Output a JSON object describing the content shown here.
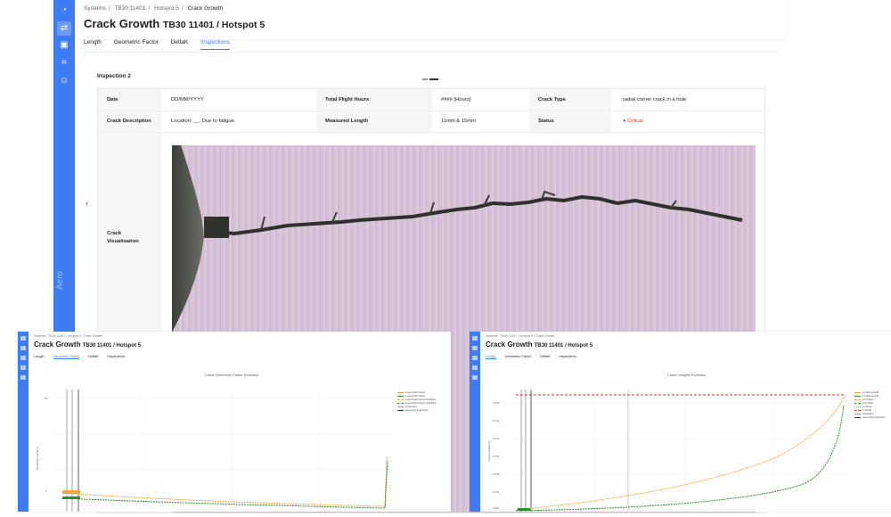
{
  "main": {
    "rail": {
      "icons": [
        "dashboard-icon",
        "systems-icon",
        "reports-icon",
        "crop-icon",
        "user-icon"
      ],
      "brand": "Aero"
    },
    "breadcrumb": [
      "Systems",
      "TB30 11401",
      "Hotspot 5",
      "Crack Growth"
    ],
    "title": "Crack Growth",
    "subtitle": "TB30 11401 / Hotspot 5",
    "tabs": [
      "Length",
      "Geometric Factor",
      "DeltaK",
      "Inspections"
    ],
    "active_tab": "Inspections",
    "inspection_title": "Inspection 2",
    "table": {
      "row1": [
        {
          "label": "Date",
          "value": "DD/MM/YYYY"
        },
        {
          "label": "Total Flight Hours",
          "value": "#### [Hours]"
        },
        {
          "label": "Crack Type",
          "value": "radial corner crack in a hole"
        }
      ],
      "row2": [
        {
          "label": "Crack Description",
          "value": "Location: __. Due to fatigue."
        },
        {
          "label": "Measured Length",
          "value": "11mm & 15mm"
        },
        {
          "label": "Status",
          "value": "Critical"
        }
      ],
      "visualisation_label": "Crack Visualisation"
    },
    "status_color": "#e53935"
  },
  "left_window": {
    "breadcrumb": [
      "Systems",
      "TB30 11401",
      "Hotspot 5",
      "Crack Growth"
    ],
    "title": "Crack Growth",
    "subtitle": "TB30 11401 / Hotspot 5",
    "tabs": [
      "Length",
      "Geometric Factor",
      "DeltaK",
      "Inspections"
    ],
    "active_tab": "Geometric Factor",
    "chart_title": "Crack Geometric Factor Evolution",
    "ylabel": "Geometry Factor [-]",
    "ticks": [
      "10",
      "1"
    ],
    "legend": [
      "a geometric factor",
      "c geometric factor",
      "a geometric factor limit/slice",
      "c geometric factor limit/slice",
      "inspection",
      "upcoming inspection"
    ]
  },
  "right_window": {
    "breadcrumb": [
      "Systems",
      "TB30 11401",
      "Hotspot 5",
      "Crack Growth"
    ],
    "title": "Crack Growth",
    "subtitle": "TB30 11401 / Hotspot 5",
    "tabs": [
      "Length",
      "Geometric Factor",
      "DeltaK",
      "Inspections"
    ],
    "active_tab": "Length",
    "chart_title": "Crack Lengths Evolution",
    "ylabel": "Crack Length [m]",
    "ticks": [
      "0.016",
      "0.014",
      "0.012",
      "0.010",
      "0.008",
      "0.006",
      "0.004"
    ],
    "legend": [
      "a crack growth",
      "c crack growth",
      "a fit mean",
      "c fit mean",
      "a critical",
      "c critical",
      "inspection",
      "upcoming inspection"
    ]
  },
  "colors": {
    "accent": "#3f7bf2",
    "orange": "#f2a33a",
    "green": "#2e8b2e",
    "red": "#d32f2f"
  }
}
